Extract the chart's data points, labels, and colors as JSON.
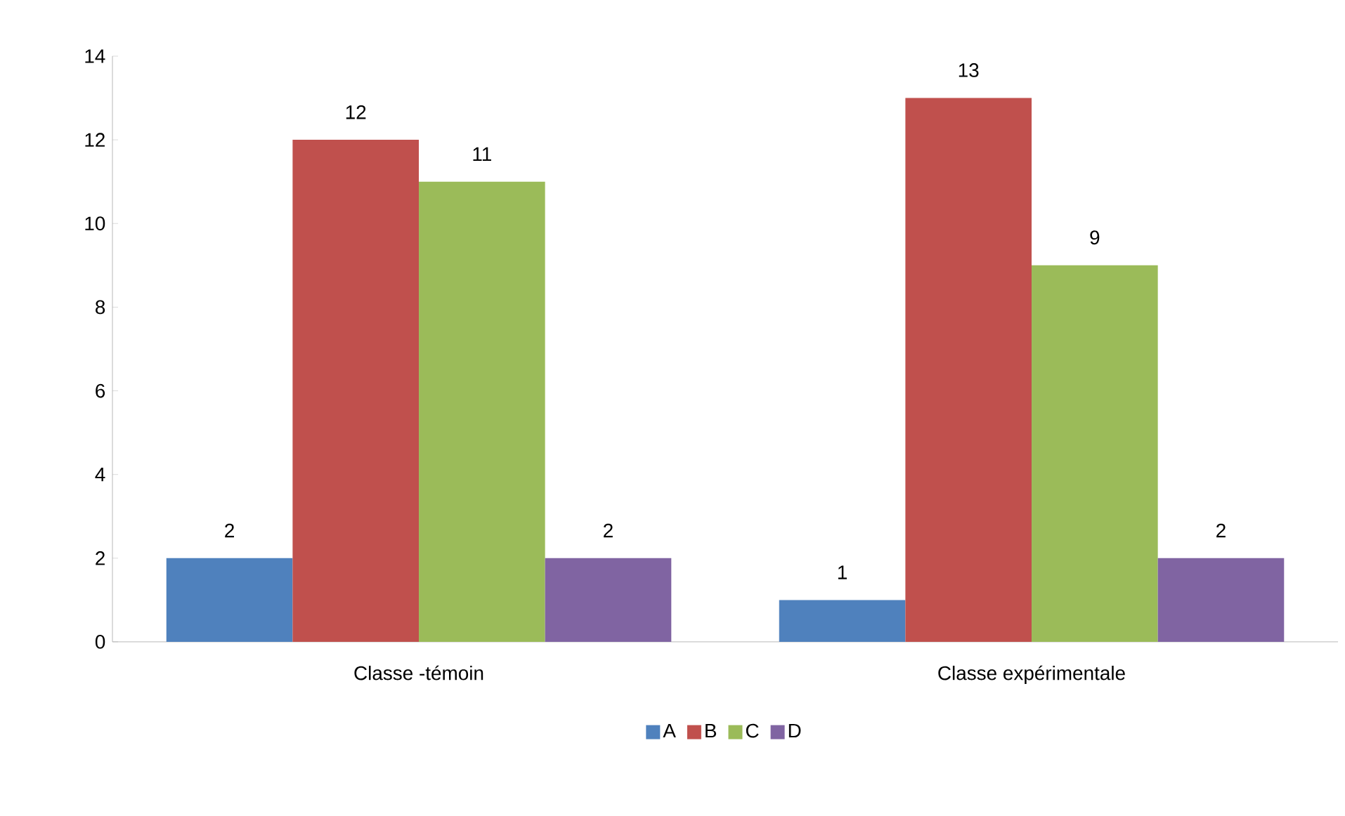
{
  "chart_data": {
    "type": "bar",
    "categories": [
      "Classe -témoin",
      "Classe expérimentale"
    ],
    "series": [
      {
        "name": "A",
        "color": "#4f81bd",
        "values": [
          2,
          1
        ]
      },
      {
        "name": "B",
        "color": "#c0504d",
        "values": [
          12,
          13
        ]
      },
      {
        "name": "C",
        "color": "#9bbb59",
        "values": [
          11,
          9
        ]
      },
      {
        "name": "D",
        "color": "#8064a2",
        "values": [
          2,
          2
        ]
      }
    ],
    "ylim": [
      0,
      14
    ],
    "yticks": [
      0,
      2,
      4,
      6,
      8,
      10,
      12,
      14
    ],
    "data_labels": true,
    "legend": "bottom",
    "grid": false
  }
}
